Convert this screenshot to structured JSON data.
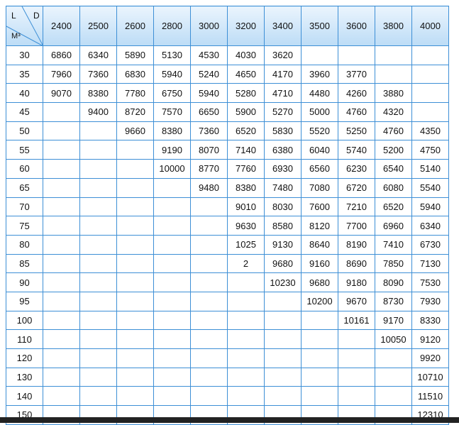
{
  "table": {
    "corner": {
      "l": "L",
      "d": "D",
      "m": "M³"
    },
    "header": [
      2400,
      2500,
      2600,
      2800,
      3000,
      3200,
      3400,
      3500,
      3600,
      3800,
      4000
    ],
    "rows": [
      [
        30,
        6860,
        6340,
        5890,
        5130,
        4530,
        4030,
        3620,
        null,
        null,
        null,
        null
      ],
      [
        35,
        7960,
        7360,
        6830,
        5940,
        5240,
        4650,
        4170,
        3960,
        3770,
        null,
        null
      ],
      [
        40,
        9070,
        8380,
        7780,
        6750,
        5940,
        5280,
        4710,
        4480,
        4260,
        3880,
        null
      ],
      [
        45,
        null,
        9400,
        8720,
        7570,
        6650,
        5900,
        5270,
        5000,
        4760,
        4320,
        null
      ],
      [
        50,
        null,
        null,
        9660,
        8380,
        7360,
        6520,
        5830,
        5520,
        5250,
        4760,
        4350
      ],
      [
        55,
        null,
        null,
        null,
        9190,
        8070,
        7140,
        6380,
        6040,
        5740,
        5200,
        4750
      ],
      [
        60,
        null,
        null,
        null,
        10000,
        8770,
        7760,
        6930,
        6560,
        6230,
        6540,
        5140
      ],
      [
        65,
        null,
        null,
        null,
        null,
        9480,
        8380,
        7480,
        7080,
        6720,
        6080,
        5540
      ],
      [
        70,
        null,
        null,
        null,
        null,
        null,
        9010,
        8030,
        7600,
        7210,
        6520,
        5940
      ],
      [
        75,
        null,
        null,
        null,
        null,
        null,
        9630,
        8580,
        8120,
        7700,
        6960,
        6340
      ],
      [
        80,
        null,
        null,
        null,
        null,
        null,
        1025,
        9130,
        8640,
        8190,
        7410,
        6730
      ],
      [
        85,
        null,
        null,
        null,
        null,
        null,
        2,
        9680,
        9160,
        8690,
        7850,
        7130
      ],
      [
        90,
        null,
        null,
        null,
        null,
        null,
        null,
        10230,
        9680,
        9180,
        8090,
        7530
      ],
      [
        95,
        null,
        null,
        null,
        null,
        null,
        null,
        null,
        10200,
        9670,
        8730,
        7930
      ],
      [
        100,
        null,
        null,
        null,
        null,
        null,
        null,
        null,
        null,
        10161,
        9170,
        8330
      ],
      [
        110,
        null,
        null,
        null,
        null,
        null,
        null,
        null,
        null,
        null,
        10050,
        9120
      ],
      [
        120,
        null,
        null,
        null,
        null,
        null,
        null,
        null,
        null,
        null,
        null,
        9920
      ],
      [
        130,
        null,
        null,
        null,
        null,
        null,
        null,
        null,
        null,
        null,
        null,
        10710
      ],
      [
        140,
        null,
        null,
        null,
        null,
        null,
        null,
        null,
        null,
        null,
        null,
        11510
      ],
      [
        150,
        null,
        null,
        null,
        null,
        null,
        null,
        null,
        null,
        null,
        null,
        12310
      ]
    ]
  }
}
